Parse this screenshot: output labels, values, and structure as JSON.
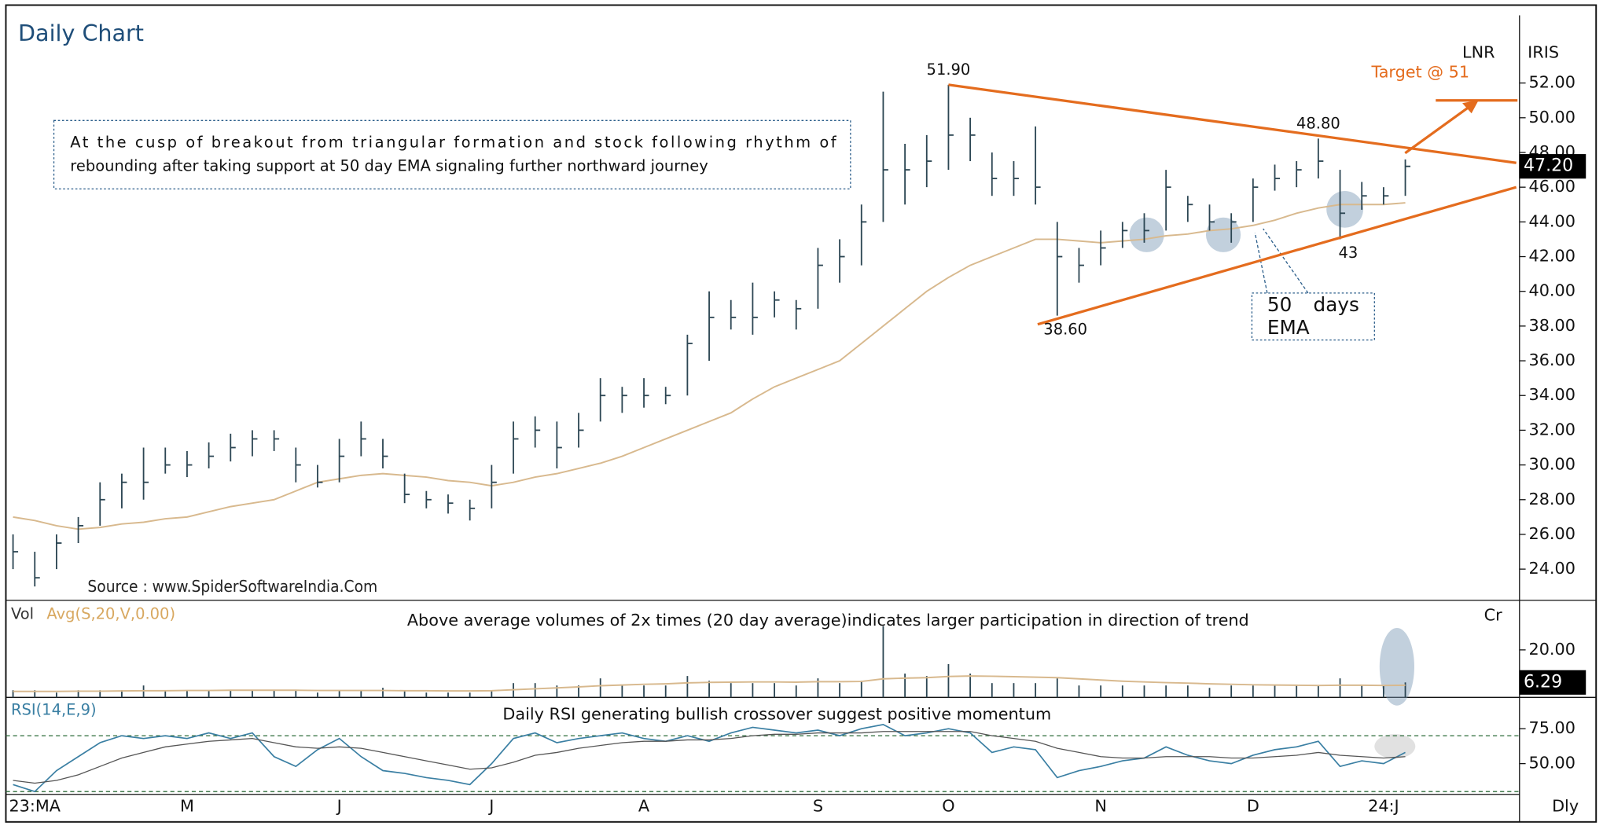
{
  "chart_data": [
    {
      "type": "ohlc",
      "title": "Daily Chart",
      "symbol": "LNR",
      "provider": "IRIS",
      "period": "Dly",
      "categories": [
        null,
        "23:MA",
        null,
        null,
        null,
        null,
        null,
        null,
        "M",
        null,
        null,
        null,
        null,
        null,
        null,
        "J",
        null,
        null,
        null,
        null,
        null,
        null,
        "J",
        null,
        null,
        null,
        null,
        null,
        null,
        "A",
        null,
        null,
        null,
        null,
        null,
        null,
        null,
        "S",
        null,
        null,
        null,
        null,
        null,
        "O",
        null,
        null,
        null,
        null,
        null,
        null,
        "N",
        null,
        null,
        null,
        null,
        null,
        null,
        "D",
        null,
        null,
        null,
        null,
        null,
        "24:J",
        null
      ],
      "high": [
        26,
        25,
        26,
        27,
        29,
        29.5,
        31,
        31,
        30.8,
        31.3,
        31.8,
        32,
        32,
        31,
        30,
        31.5,
        32.5,
        31.5,
        29.5,
        28.5,
        28.3,
        28,
        30,
        32.5,
        32.8,
        32.5,
        33,
        35,
        34.5,
        35,
        34.5,
        37.5,
        40,
        39.5,
        40.5,
        40,
        39.5,
        42.5,
        43,
        45,
        51.5,
        48.5,
        49,
        51.9,
        50,
        48,
        47.5,
        49.5,
        44,
        42.5,
        43.5,
        44,
        44.5,
        47,
        45.5,
        45,
        44.5,
        46.5,
        47.3,
        47.5,
        48.8,
        47,
        46.3,
        46,
        47.6
      ],
      "low": [
        24,
        23,
        24,
        25.5,
        26.5,
        27.5,
        28,
        29.5,
        29.3,
        29.8,
        30.2,
        30.5,
        30.8,
        29,
        28.7,
        29,
        30.5,
        29.8,
        27.8,
        27.5,
        27.2,
        26.8,
        27.5,
        29.5,
        31,
        29.8,
        31,
        32.5,
        33,
        33.3,
        33.5,
        34,
        36,
        37.8,
        37.5,
        38.5,
        37.8,
        39,
        40.5,
        41.5,
        44,
        45,
        46,
        47,
        47.5,
        45.5,
        45.5,
        45,
        38.6,
        40.5,
        41.5,
        42.5,
        42.8,
        43.5,
        44,
        43.5,
        42.8,
        44,
        45.8,
        46,
        46.5,
        43,
        44.7,
        45,
        45.5
      ],
      "close": [
        25,
        23.5,
        25.5,
        26.5,
        28,
        29,
        29,
        30,
        30,
        30.5,
        31,
        31.5,
        31.5,
        30,
        29,
        30.5,
        31.5,
        30.5,
        28.3,
        28,
        27.8,
        27.5,
        29,
        31.5,
        32,
        31,
        32,
        34,
        34,
        34,
        34,
        37,
        38.5,
        38.5,
        38.5,
        39.5,
        39,
        41.5,
        42,
        44,
        47,
        47,
        47.5,
        49,
        49,
        46.5,
        46.5,
        46,
        42,
        41.5,
        42.5,
        43.5,
        43.5,
        46,
        45,
        44,
        44,
        46,
        46.5,
        47,
        47.5,
        44.5,
        45.5,
        45.5,
        47.2
      ],
      "color": "#2c4653",
      "series": [
        {
          "name": "50 days EMA",
          "color": "#d8b98e",
          "values": [
            27,
            26.8,
            26.5,
            26.3,
            26.4,
            26.6,
            26.7,
            26.9,
            27,
            27.3,
            27.6,
            27.8,
            28,
            28.5,
            29,
            29.2,
            29.4,
            29.5,
            29.4,
            29.3,
            29.1,
            29,
            28.8,
            29,
            29.3,
            29.5,
            29.8,
            30.1,
            30.5,
            31,
            31.5,
            32,
            32.5,
            33,
            33.8,
            34.5,
            35,
            35.5,
            36,
            37,
            38,
            39,
            40,
            40.8,
            41.5,
            42,
            42.5,
            43,
            43,
            42.9,
            42.8,
            42.9,
            43,
            43.2,
            43.3,
            43.5,
            43.6,
            43.8,
            44.1,
            44.5,
            44.8,
            45,
            45,
            45,
            45.1
          ]
        }
      ],
      "ylim": [
        22.2,
        55.9
      ],
      "yticks": [
        {
          "value": 24,
          "label": "24.00"
        },
        {
          "value": 26,
          "label": "26.00"
        },
        {
          "value": 28,
          "label": "28.00"
        },
        {
          "value": 30,
          "label": "30.00"
        },
        {
          "value": 32,
          "label": "32.00"
        },
        {
          "value": 34,
          "label": "34.00"
        },
        {
          "value": 36,
          "label": "36.00"
        },
        {
          "value": 38,
          "label": "38.00"
        },
        {
          "value": 40,
          "label": "40.00"
        },
        {
          "value": 42,
          "label": "42.00"
        },
        {
          "value": 44,
          "label": "44.00"
        },
        {
          "value": 46,
          "label": "46.00"
        },
        {
          "value": 48,
          "label": "48.00"
        },
        {
          "value": 50,
          "label": "50.00"
        },
        {
          "value": 52,
          "label": "52.00"
        }
      ],
      "last_price": {
        "value": 47.2,
        "label": "47.20"
      },
      "annotations": [
        {
          "label": "51.90",
          "value": 51.9,
          "index": 43
        },
        {
          "label": "48.80",
          "value": 48.8,
          "index": 60
        },
        {
          "label": "38.60",
          "value": 38.6,
          "index": 48
        },
        {
          "label": "43",
          "value": 43,
          "index": 61
        }
      ],
      "trendlines": [
        {
          "x": [
            43,
            69.1
          ],
          "y": [
            51.9,
            47.4
          ]
        },
        {
          "x": [
            47.1,
            69.1
          ],
          "y": [
            38.1,
            46
          ]
        }
      ],
      "target": {
        "label": "Target @ 51",
        "value": 51
      },
      "notes": [
        "At the cusp of breakout from triangular formation and stock following rhythm of",
        "rebounding after taking support at 50 day EMA signaling further northward journey"
      ],
      "source": "Source : www.SpiderSoftwareIndia.Com"
    },
    {
      "type": "bar",
      "label": "Vol",
      "unit": "Cr",
      "note": "Above average  volumes of 2x times (20 day average)indicates larger participation in direction of trend",
      "values": [
        3,
        3,
        2,
        3,
        3,
        3,
        5,
        3,
        3,
        3,
        3,
        3,
        3,
        3,
        2,
        3,
        3,
        4,
        3,
        2,
        2,
        2,
        3,
        6,
        6,
        5,
        5,
        8,
        5,
        5,
        5,
        9,
        7,
        6,
        6,
        6,
        5,
        8,
        6,
        7,
        30,
        10,
        9,
        14,
        10,
        6,
        6,
        6,
        8,
        5,
        5,
        5,
        5,
        5,
        5,
        4,
        5,
        5,
        5,
        5,
        5,
        8,
        5,
        5,
        6.29
      ],
      "color": "#2c4653",
      "series": [
        {
          "name": "Avg(S,20,V,0.00)",
          "color": "#d8b98e",
          "values": [
            2.5,
            2.5,
            2.5,
            2.6,
            2.6,
            2.7,
            2.8,
            2.8,
            2.9,
            2.9,
            3,
            3,
            3,
            3,
            2.9,
            2.9,
            2.9,
            2.9,
            2.8,
            2.8,
            2.7,
            2.7,
            2.8,
            3.2,
            3.6,
            4,
            4.4,
            4.9,
            5.2,
            5.5,
            5.7,
            6.1,
            6.3,
            6.4,
            6.5,
            6.5,
            6.4,
            6.6,
            6.6,
            6.7,
            7.8,
            8.1,
            8.3,
            8.8,
            9,
            8.9,
            8.7,
            8.5,
            8.3,
            7.8,
            7.3,
            6.8,
            6.5,
            6.2,
            6,
            5.7,
            5.5,
            5.3,
            5.2,
            5.1,
            5,
            5.1,
            5.1,
            5,
            5.1
          ]
        }
      ],
      "ylim": [
        0,
        40
      ],
      "yticks": [
        {
          "value": 20,
          "label": "20.00"
        }
      ],
      "last": {
        "value": 6.29,
        "label": "6.29"
      }
    },
    {
      "type": "line",
      "label": "RSI(14,E,9)",
      "note": "Daily RSI generating bullish crossover suggest positive momentum",
      "series": [
        {
          "color": "#3a7fa3",
          "values": [
            35,
            30,
            45,
            55,
            65,
            70,
            68,
            70,
            68,
            72,
            68,
            72,
            55,
            48,
            60,
            68,
            55,
            45,
            43,
            40,
            38,
            35,
            50,
            68,
            72,
            65,
            68,
            70,
            72,
            68,
            66,
            70,
            66,
            72,
            76,
            74,
            72,
            74,
            70,
            75,
            78,
            70,
            72,
            75,
            72,
            58,
            62,
            60,
            40,
            45,
            48,
            52,
            54,
            62,
            56,
            52,
            50,
            56,
            60,
            62,
            66,
            48,
            52,
            50,
            58
          ]
        },
        {
          "color": "#555555",
          "values": [
            38,
            36,
            38,
            42,
            48,
            54,
            58,
            62,
            64,
            66,
            67,
            68,
            65,
            62,
            61,
            62,
            61,
            58,
            55,
            52,
            49,
            46,
            47,
            51,
            56,
            58,
            61,
            63,
            65,
            66,
            66,
            67,
            67,
            68,
            70,
            71,
            71,
            72,
            72,
            72,
            73,
            73,
            73,
            73,
            73,
            70,
            68,
            66,
            61,
            58,
            55,
            54,
            54,
            55,
            55,
            55,
            54,
            54,
            55,
            56,
            58,
            56,
            55,
            54,
            55
          ]
        }
      ],
      "ylim": [
        28,
        96
      ],
      "yticks": [
        {
          "value": 75,
          "label": "75.00"
        },
        {
          "value": 50,
          "label": "50.00"
        }
      ],
      "levels": [
        70,
        30
      ]
    }
  ]
}
